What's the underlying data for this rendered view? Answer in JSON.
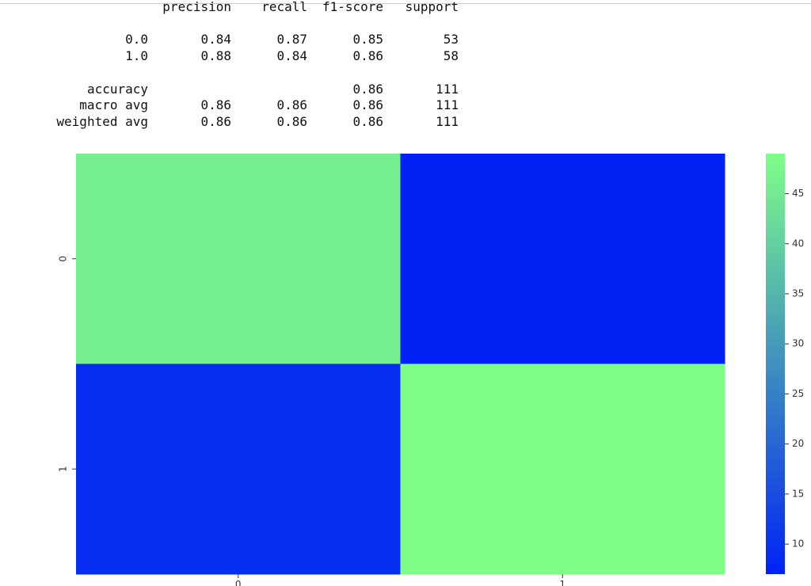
{
  "report": {
    "header": [
      "precision",
      "recall",
      "f1-score",
      "support"
    ],
    "rows": [
      [
        "0.0",
        0.84,
        0.87,
        0.85,
        53
      ],
      [
        "1.0",
        0.88,
        0.84,
        0.86,
        58
      ]
    ],
    "accuracy": [
      "accuracy",
      0.86,
      111
    ],
    "averages": [
      [
        "macro avg",
        0.86,
        0.86,
        0.86,
        111
      ],
      [
        "weighted avg",
        0.86,
        0.86,
        0.86,
        111
      ]
    ]
  },
  "chart_data": {
    "type": "heatmap",
    "x_categories": [
      "0",
      "1"
    ],
    "y_categories": [
      "0",
      "1"
    ],
    "values": [
      [
        46,
        7
      ],
      [
        9,
        49
      ]
    ],
    "colormap": [
      "#0022f5",
      "#7fff88"
    ],
    "colorbar_lim": [
      7,
      49
    ],
    "colorbar_ticks": [
      10,
      15,
      20,
      25,
      30,
      35,
      40,
      45
    ]
  }
}
